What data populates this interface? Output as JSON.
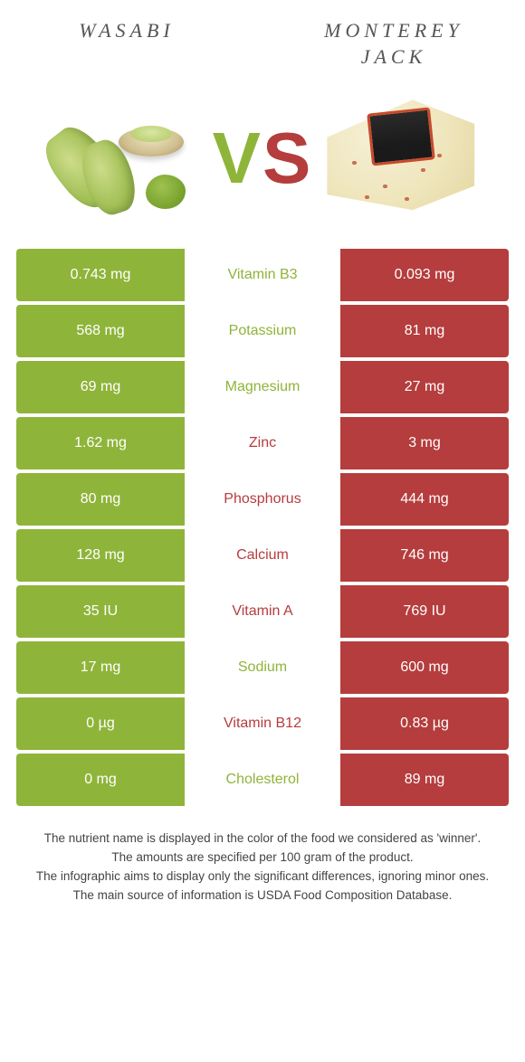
{
  "titles": {
    "left": "Wasabi",
    "right": "Monterey Jack"
  },
  "vs": {
    "v": "V",
    "s": "S"
  },
  "colors": {
    "left_bg": "#8fb43a",
    "right_bg": "#b53d3d",
    "cell_text": "#ffffff",
    "background": "#ffffff"
  },
  "rows": [
    {
      "left": "0.743 mg",
      "name": "Vitamin B3",
      "right": "0.093 mg",
      "winner": "left"
    },
    {
      "left": "568 mg",
      "name": "Potassium",
      "right": "81 mg",
      "winner": "left"
    },
    {
      "left": "69 mg",
      "name": "Magnesium",
      "right": "27 mg",
      "winner": "left"
    },
    {
      "left": "1.62 mg",
      "name": "Zinc",
      "right": "3 mg",
      "winner": "right"
    },
    {
      "left": "80 mg",
      "name": "Phosphorus",
      "right": "444 mg",
      "winner": "right"
    },
    {
      "left": "128 mg",
      "name": "Calcium",
      "right": "746 mg",
      "winner": "right"
    },
    {
      "left": "35 IU",
      "name": "Vitamin A",
      "right": "769 IU",
      "winner": "right"
    },
    {
      "left": "17 mg",
      "name": "Sodium",
      "right": "600 mg",
      "winner": "left"
    },
    {
      "left": "0 µg",
      "name": "Vitamin B12",
      "right": "0.83 µg",
      "winner": "right"
    },
    {
      "left": "0 mg",
      "name": "Cholesterol",
      "right": "89 mg",
      "winner": "left"
    }
  ],
  "footer": {
    "l1": "The nutrient name is displayed in the color of the food we considered as 'winner'.",
    "l2": "The amounts are specified per 100 gram of the product.",
    "l3": "The infographic aims to display only the significant differences, ignoring minor ones.",
    "l4": "The main source of information is USDA Food Composition Database."
  }
}
